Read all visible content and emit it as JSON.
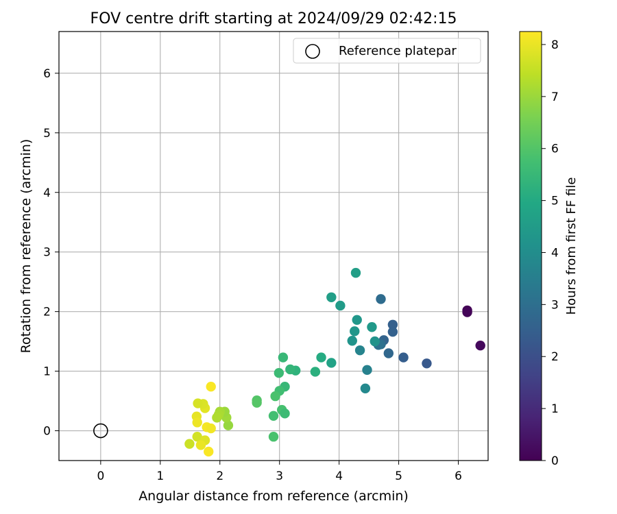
{
  "chart_data": {
    "type": "scatter",
    "title": "FOV centre drift starting at 2024/09/29 02:42:15",
    "xlabel": "Angular distance from reference (arcmin)",
    "ylabel": "Rotation from reference (arcmin)",
    "xlim": [
      -0.7,
      6.5
    ],
    "ylim": [
      -0.5,
      6.7
    ],
    "xticks": [
      "0",
      "1",
      "2",
      "3",
      "4",
      "5",
      "6"
    ],
    "yticks": [
      "0",
      "1",
      "2",
      "3",
      "4",
      "5",
      "6"
    ],
    "grid": true,
    "legend": {
      "position": "top-right",
      "entries": [
        "Reference platepar"
      ]
    },
    "reference": {
      "x": 0,
      "y": 0
    },
    "colorbar": {
      "label": "Hours from first FF file",
      "colormap": "viridis",
      "range": [
        0,
        8.25
      ],
      "ticks": [
        "0",
        "1",
        "2",
        "3",
        "4",
        "5",
        "6",
        "7",
        "8"
      ]
    },
    "points": [
      {
        "x": 6.15,
        "y": 2.02,
        "hours": 0.05
      },
      {
        "x": 6.15,
        "y": 1.99,
        "hours": 0.1
      },
      {
        "x": 6.37,
        "y": 1.43,
        "hours": 0.2
      },
      {
        "x": 5.47,
        "y": 1.13,
        "hours": 2.3
      },
      {
        "x": 5.08,
        "y": 1.23,
        "hours": 2.45
      },
      {
        "x": 4.9,
        "y": 1.78,
        "hours": 2.5
      },
      {
        "x": 4.9,
        "y": 1.66,
        "hours": 2.55
      },
      {
        "x": 4.83,
        "y": 1.3,
        "hours": 2.75
      },
      {
        "x": 4.75,
        "y": 1.52,
        "hours": 2.65
      },
      {
        "x": 4.7,
        "y": 2.21,
        "hours": 2.9
      },
      {
        "x": 4.7,
        "y": 1.45,
        "hours": 3.0
      },
      {
        "x": 4.66,
        "y": 1.44,
        "hours": 3.1
      },
      {
        "x": 4.47,
        "y": 1.02,
        "hours": 3.6
      },
      {
        "x": 4.44,
        "y": 0.71,
        "hours": 3.85
      },
      {
        "x": 4.35,
        "y": 1.35,
        "hours": 3.7
      },
      {
        "x": 4.6,
        "y": 1.5,
        "hours": 4.2
      },
      {
        "x": 4.55,
        "y": 1.74,
        "hours": 4.4
      },
      {
        "x": 4.3,
        "y": 1.86,
        "hours": 4.35
      },
      {
        "x": 4.26,
        "y": 1.67,
        "hours": 4.3
      },
      {
        "x": 4.22,
        "y": 1.51,
        "hours": 4.25
      },
      {
        "x": 4.28,
        "y": 2.65,
        "hours": 4.6
      },
      {
        "x": 4.02,
        "y": 2.1,
        "hours": 4.5
      },
      {
        "x": 3.87,
        "y": 2.24,
        "hours": 4.6
      },
      {
        "x": 3.87,
        "y": 1.14,
        "hours": 4.75
      },
      {
        "x": 3.7,
        "y": 1.23,
        "hours": 5.05
      },
      {
        "x": 3.6,
        "y": 0.99,
        "hours": 5.2
      },
      {
        "x": 3.27,
        "y": 1.01,
        "hours": 5.3
      },
      {
        "x": 3.18,
        "y": 1.03,
        "hours": 5.4
      },
      {
        "x": 3.06,
        "y": 1.23,
        "hours": 5.5
      },
      {
        "x": 2.99,
        "y": 0.97,
        "hours": 5.6
      },
      {
        "x": 3.09,
        "y": 0.74,
        "hours": 5.5
      },
      {
        "x": 3.0,
        "y": 0.67,
        "hours": 5.7
      },
      {
        "x": 2.93,
        "y": 0.58,
        "hours": 5.85
      },
      {
        "x": 3.04,
        "y": 0.35,
        "hours": 5.8
      },
      {
        "x": 3.09,
        "y": 0.29,
        "hours": 5.6
      },
      {
        "x": 2.9,
        "y": 0.25,
        "hours": 5.75
      },
      {
        "x": 2.9,
        "y": -0.1,
        "hours": 5.85
      },
      {
        "x": 2.62,
        "y": 0.51,
        "hours": 6.0
      },
      {
        "x": 2.62,
        "y": 0.47,
        "hours": 6.05
      },
      {
        "x": 2.14,
        "y": 0.09,
        "hours": 6.95
      },
      {
        "x": 2.11,
        "y": 0.22,
        "hours": 7.05
      },
      {
        "x": 2.08,
        "y": 0.32,
        "hours": 7.0
      },
      {
        "x": 2.0,
        "y": 0.32,
        "hours": 7.15
      },
      {
        "x": 1.98,
        "y": 0.27,
        "hours": 7.2
      },
      {
        "x": 1.95,
        "y": 0.22,
        "hours": 7.25
      },
      {
        "x": 1.85,
        "y": 0.74,
        "hours": 8.2
      },
      {
        "x": 1.75,
        "y": 0.38,
        "hours": 7.9
      },
      {
        "x": 1.72,
        "y": 0.45,
        "hours": 7.8
      },
      {
        "x": 1.63,
        "y": 0.46,
        "hours": 7.75
      },
      {
        "x": 1.61,
        "y": 0.24,
        "hours": 7.95
      },
      {
        "x": 1.62,
        "y": 0.14,
        "hours": 8.05
      },
      {
        "x": 1.78,
        "y": 0.06,
        "hours": 8.15
      },
      {
        "x": 1.85,
        "y": 0.04,
        "hours": 8.1
      },
      {
        "x": 1.62,
        "y": -0.1,
        "hours": 7.7
      },
      {
        "x": 1.75,
        "y": -0.16,
        "hours": 7.85
      },
      {
        "x": 1.68,
        "y": -0.24,
        "hours": 8.0
      },
      {
        "x": 1.49,
        "y": -0.22,
        "hours": 7.6
      },
      {
        "x": 1.81,
        "y": -0.35,
        "hours": 8.2
      }
    ]
  }
}
